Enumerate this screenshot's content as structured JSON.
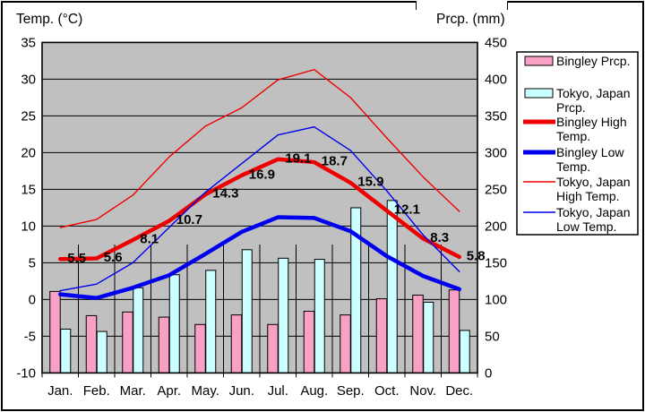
{
  "figure": {
    "kind": "climate-comparison-chart"
  },
  "chart_data": {
    "type": "bar+line combo",
    "categories": [
      "Jan.",
      "Feb.",
      "Mar.",
      "Apr.",
      "May.",
      "Jun.",
      "Jul.",
      "Aug.",
      "Sep.",
      "Oct.",
      "Nov.",
      "Dec."
    ],
    "left_axis": {
      "title": "Temp. (°C)",
      "min": -10,
      "max": 35,
      "step": 5,
      "tick_labels": [
        "35",
        "30",
        "25",
        "20",
        "15",
        "10",
        "5",
        "0",
        "-5",
        "-10"
      ]
    },
    "right_axis": {
      "title": "Prcp. (mm)",
      "min": 0,
      "max": 450,
      "step": 50,
      "tick_labels": [
        "450",
        "400",
        "350",
        "300",
        "250",
        "200",
        "150",
        "100",
        "50",
        "0"
      ]
    },
    "plot_background": "#C0C0C0",
    "grid": "horizontal major lines on; vertical month-separator lines in lower bar region",
    "legend_position": "right",
    "series": [
      {
        "name": "Bingley Prcp.",
        "legend_lines": [
          "Bingley Prcp."
        ],
        "type": "bar",
        "axis": "right",
        "color": "#F9A0C5",
        "values": [
          111,
          78,
          83,
          76,
          66,
          79,
          66,
          84,
          79,
          101,
          106,
          113
        ]
      },
      {
        "name": "Tokyo, Japan Prcp.",
        "legend_lines": [
          "Tokyo, Japan",
          "Prcp."
        ],
        "type": "bar",
        "axis": "right",
        "color": "#CCFFFF",
        "values": [
          59.7,
          56.5,
          116.0,
          133.7,
          139.7,
          167.8,
          156.2,
          154.7,
          224.9,
          234.8,
          96.3,
          57.9
        ]
      },
      {
        "name": "Bingley High Temp.",
        "legend_lines": [
          "Bingley High",
          "Temp."
        ],
        "type": "line",
        "axis": "left",
        "color": "#EE0000",
        "stroke_width": 4.5,
        "data_labels": true,
        "values": [
          5.5,
          5.6,
          8.1,
          10.7,
          14.3,
          16.9,
          19.1,
          18.7,
          15.9,
          12.1,
          8.3,
          5.8
        ]
      },
      {
        "name": "Bingley Low Temp.",
        "legend_lines": [
          "Bingley Low",
          "Temp."
        ],
        "type": "line",
        "axis": "left",
        "color": "#0000EE",
        "stroke_width": 4.5,
        "values": [
          0.7,
          0.2,
          1.6,
          3.3,
          6.2,
          9.2,
          11.2,
          11.1,
          9.3,
          5.9,
          3.2,
          1.4
        ]
      },
      {
        "name": "Tokyo, Japan High Temp.",
        "legend_lines": [
          "Tokyo, Japan",
          "High Temp."
        ],
        "type": "line",
        "axis": "left",
        "color": "#EE0000",
        "stroke_width": 1.4,
        "values": [
          9.8,
          10.9,
          14.2,
          19.4,
          23.6,
          26.1,
          29.9,
          31.3,
          27.5,
          22.0,
          16.7,
          12.0
        ]
      },
      {
        "name": "Tokyo, Japan Low Temp.",
        "legend_lines": [
          "Tokyo, Japan",
          "Low Temp."
        ],
        "type": "line",
        "axis": "left",
        "color": "#0000EE",
        "stroke_width": 1.4,
        "values": [
          1.2,
          2.1,
          5.0,
          9.8,
          14.6,
          18.5,
          22.4,
          23.5,
          20.3,
          14.8,
          8.8,
          3.8
        ]
      }
    ]
  }
}
